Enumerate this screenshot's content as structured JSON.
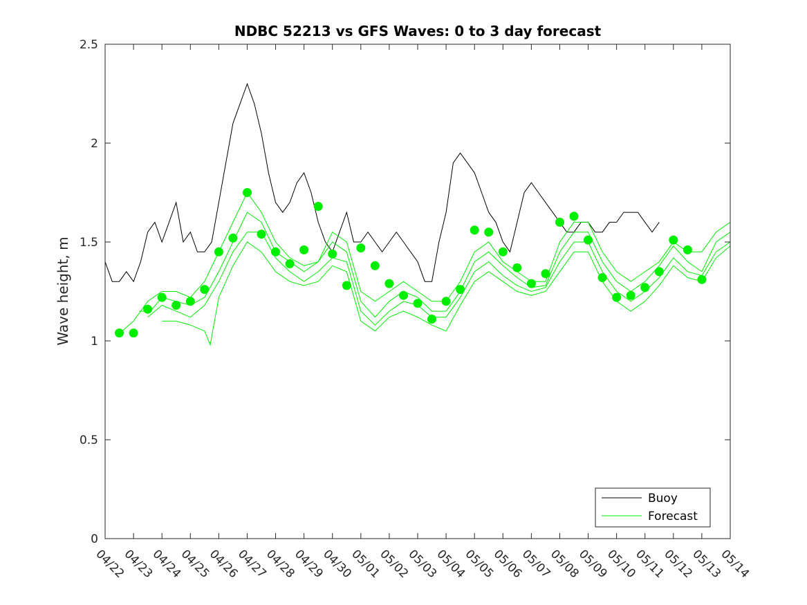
{
  "chart_data": {
    "type": "line",
    "title": "NDBC 52213 vs GFS Waves: 0 to 3 day forecast",
    "xlabel": "",
    "ylabel": "Wave height, m",
    "ylim": [
      0,
      2.5
    ],
    "yticks": [
      "0",
      "0.5",
      "1",
      "1.5",
      "2",
      "2.5"
    ],
    "xlim_days": [
      0,
      22
    ],
    "xticks": [
      "04/22",
      "04/23",
      "04/24",
      "04/25",
      "04/26",
      "04/27",
      "04/28",
      "04/29",
      "04/30",
      "05/01",
      "05/02",
      "05/03",
      "05/04",
      "05/05",
      "05/06",
      "05/07",
      "05/08",
      "05/09",
      "05/10",
      "05/11",
      "05/12",
      "05/13",
      "05/14"
    ],
    "grid": false,
    "legend": {
      "position": "bottom-right",
      "entries": [
        "Buoy",
        "Forecast"
      ]
    },
    "colors": {
      "buoy": "#000000",
      "forecast": "#00ee00"
    },
    "series": [
      {
        "name": "Buoy",
        "style": "line",
        "points": [
          [
            0,
            1.4
          ],
          [
            0.25,
            1.3
          ],
          [
            0.5,
            1.3
          ],
          [
            0.75,
            1.35
          ],
          [
            1,
            1.3
          ],
          [
            1.25,
            1.4
          ],
          [
            1.5,
            1.55
          ],
          [
            1.75,
            1.6
          ],
          [
            2,
            1.5
          ],
          [
            2.25,
            1.6
          ],
          [
            2.5,
            1.7
          ],
          [
            2.75,
            1.5
          ],
          [
            3,
            1.55
          ],
          [
            3.25,
            1.45
          ],
          [
            3.5,
            1.45
          ],
          [
            3.75,
            1.5
          ],
          [
            4,
            1.7
          ],
          [
            4.25,
            1.9
          ],
          [
            4.5,
            2.1
          ],
          [
            4.75,
            2.2
          ],
          [
            5,
            2.3
          ],
          [
            5.25,
            2.2
          ],
          [
            5.5,
            2.05
          ],
          [
            5.75,
            1.85
          ],
          [
            6,
            1.7
          ],
          [
            6.25,
            1.65
          ],
          [
            6.5,
            1.7
          ],
          [
            6.75,
            1.8
          ],
          [
            7,
            1.85
          ],
          [
            7.25,
            1.75
          ],
          [
            7.5,
            1.6
          ],
          [
            7.75,
            1.5
          ],
          [
            8,
            1.45
          ],
          [
            8.25,
            1.55
          ],
          [
            8.5,
            1.65
          ],
          [
            8.75,
            1.5
          ],
          [
            9,
            1.5
          ],
          [
            9.25,
            1.55
          ],
          [
            9.5,
            1.5
          ],
          [
            9.75,
            1.45
          ],
          [
            10,
            1.5
          ],
          [
            10.25,
            1.55
          ],
          [
            10.5,
            1.5
          ],
          [
            10.75,
            1.45
          ],
          [
            11,
            1.4
          ],
          [
            11.25,
            1.3
          ],
          [
            11.5,
            1.3
          ],
          [
            11.75,
            1.5
          ],
          [
            12,
            1.65
          ],
          [
            12.25,
            1.9
          ],
          [
            12.5,
            1.95
          ],
          [
            12.75,
            1.9
          ],
          [
            13,
            1.85
          ],
          [
            13.25,
            1.75
          ],
          [
            13.5,
            1.65
          ],
          [
            13.75,
            1.6
          ],
          [
            14,
            1.5
          ],
          [
            14.25,
            1.45
          ],
          [
            14.5,
            1.6
          ],
          [
            14.75,
            1.75
          ],
          [
            15,
            1.8
          ],
          [
            15.25,
            1.75
          ],
          [
            15.5,
            1.7
          ],
          [
            15.75,
            1.65
          ],
          [
            16,
            1.6
          ],
          [
            16.25,
            1.55
          ],
          [
            16.5,
            1.55
          ],
          [
            16.75,
            1.6
          ],
          [
            17,
            1.6
          ],
          [
            17.25,
            1.55
          ],
          [
            17.5,
            1.55
          ],
          [
            17.75,
            1.6
          ],
          [
            18,
            1.6
          ],
          [
            18.25,
            1.65
          ],
          [
            18.5,
            1.65
          ],
          [
            18.75,
            1.65
          ],
          [
            19,
            1.6
          ],
          [
            19.25,
            1.55
          ],
          [
            19.5,
            1.6
          ]
        ]
      },
      {
        "name": "Forecast",
        "style": "line-thin",
        "runs": [
          [
            [
              0.6,
              1.05
            ],
            [
              1,
              1.1
            ],
            [
              1.5,
              1.2
            ],
            [
              2,
              1.25
            ],
            [
              2.5,
              1.25
            ],
            [
              3,
              1.22
            ],
            [
              3.5,
              1.3
            ],
            [
              4,
              1.45
            ],
            [
              4.5,
              1.6
            ],
            [
              5,
              1.75
            ],
            [
              5.5,
              1.65
            ],
            [
              6,
              1.5
            ],
            [
              6.5,
              1.42
            ],
            [
              7,
              1.38
            ],
            [
              7.5,
              1.4
            ],
            [
              8,
              1.55
            ],
            [
              8.5,
              1.5
            ],
            [
              9,
              1.25
            ],
            [
              9.5,
              1.2
            ],
            [
              10,
              1.25
            ],
            [
              10.5,
              1.3
            ],
            [
              11,
              1.25
            ],
            [
              11.5,
              1.2
            ],
            [
              12,
              1.2
            ],
            [
              12.5,
              1.3
            ],
            [
              13,
              1.45
            ],
            [
              13.5,
              1.5
            ],
            [
              14,
              1.4
            ],
            [
              14.5,
              1.35
            ],
            [
              15,
              1.3
            ],
            [
              15.5,
              1.3
            ],
            [
              16,
              1.5
            ],
            [
              16.5,
              1.6
            ],
            [
              17,
              1.6
            ],
            [
              17.5,
              1.45
            ],
            [
              18,
              1.35
            ],
            [
              18.5,
              1.3
            ],
            [
              19,
              1.35
            ],
            [
              19.5,
              1.4
            ],
            [
              20,
              1.5
            ],
            [
              20.5,
              1.45
            ],
            [
              21,
              1.45
            ],
            [
              21.5,
              1.55
            ],
            [
              22,
              1.6
            ]
          ],
          [
            [
              1.2,
              1.15
            ],
            [
              1.6,
              1.15
            ],
            [
              2,
              1.22
            ],
            [
              2.5,
              1.2
            ],
            [
              3,
              1.18
            ],
            [
              3.5,
              1.22
            ],
            [
              4,
              1.35
            ],
            [
              4.5,
              1.5
            ],
            [
              5,
              1.65
            ],
            [
              5.5,
              1.6
            ],
            [
              6,
              1.45
            ],
            [
              6.5,
              1.4
            ],
            [
              7,
              1.35
            ],
            [
              7.5,
              1.4
            ],
            [
              8,
              1.5
            ],
            [
              8.5,
              1.45
            ],
            [
              9,
              1.2
            ],
            [
              9.5,
              1.12
            ],
            [
              10,
              1.2
            ],
            [
              10.5,
              1.25
            ],
            [
              11,
              1.22
            ],
            [
              11.5,
              1.15
            ],
            [
              12,
              1.15
            ],
            [
              12.5,
              1.25
            ],
            [
              13,
              1.4
            ],
            [
              13.5,
              1.45
            ],
            [
              14,
              1.38
            ],
            [
              14.5,
              1.32
            ],
            [
              15,
              1.27
            ],
            [
              15.5,
              1.28
            ],
            [
              16,
              1.45
            ],
            [
              16.5,
              1.55
            ],
            [
              17,
              1.55
            ],
            [
              17.5,
              1.4
            ],
            [
              18,
              1.3
            ],
            [
              18.5,
              1.25
            ],
            [
              19,
              1.3
            ],
            [
              19.5,
              1.38
            ],
            [
              20,
              1.48
            ],
            [
              20.5,
              1.4
            ],
            [
              21,
              1.35
            ],
            [
              21.5,
              1.5
            ],
            [
              22,
              1.55
            ]
          ],
          [
            [
              1.5,
              1.12
            ],
            [
              2,
              1.18
            ],
            [
              2.5,
              1.15
            ],
            [
              3,
              1.12
            ],
            [
              3.5,
              1.18
            ],
            [
              4,
              1.3
            ],
            [
              4.5,
              1.45
            ],
            [
              5,
              1.55
            ],
            [
              5.5,
              1.55
            ],
            [
              6,
              1.42
            ],
            [
              6.5,
              1.35
            ],
            [
              7,
              1.3
            ],
            [
              7.5,
              1.35
            ],
            [
              8,
              1.42
            ],
            [
              8.5,
              1.4
            ],
            [
              9,
              1.15
            ],
            [
              9.5,
              1.08
            ],
            [
              10,
              1.15
            ],
            [
              10.5,
              1.2
            ],
            [
              11,
              1.18
            ],
            [
              11.5,
              1.12
            ],
            [
              12,
              1.12
            ],
            [
              12.5,
              1.22
            ],
            [
              13,
              1.35
            ],
            [
              13.5,
              1.4
            ],
            [
              14,
              1.33
            ],
            [
              14.5,
              1.28
            ],
            [
              15,
              1.25
            ],
            [
              15.5,
              1.27
            ],
            [
              16,
              1.4
            ],
            [
              16.5,
              1.5
            ],
            [
              17,
              1.5
            ],
            [
              17.5,
              1.35
            ],
            [
              18,
              1.25
            ],
            [
              18.5,
              1.2
            ],
            [
              19,
              1.25
            ],
            [
              19.5,
              1.32
            ],
            [
              20,
              1.42
            ],
            [
              20.5,
              1.35
            ],
            [
              21,
              1.33
            ],
            [
              21.5,
              1.45
            ],
            [
              22,
              1.5
            ]
          ],
          [
            [
              2,
              1.1
            ],
            [
              2.5,
              1.1
            ],
            [
              3,
              1.08
            ],
            [
              3.5,
              1.05
            ],
            [
              3.7,
              0.98
            ],
            [
              4,
              1.22
            ],
            [
              4.5,
              1.38
            ],
            [
              5,
              1.5
            ],
            [
              5.5,
              1.45
            ],
            [
              6,
              1.35
            ],
            [
              6.5,
              1.3
            ],
            [
              7,
              1.28
            ],
            [
              7.5,
              1.3
            ],
            [
              8,
              1.38
            ],
            [
              8.5,
              1.35
            ],
            [
              9,
              1.1
            ],
            [
              9.5,
              1.05
            ],
            [
              10,
              1.12
            ],
            [
              10.5,
              1.15
            ],
            [
              11,
              1.12
            ],
            [
              11.5,
              1.08
            ],
            [
              12,
              1.05
            ],
            [
              12.5,
              1.18
            ],
            [
              13,
              1.3
            ],
            [
              13.5,
              1.35
            ],
            [
              14,
              1.3
            ],
            [
              14.5,
              1.25
            ],
            [
              15,
              1.23
            ],
            [
              15.5,
              1.25
            ],
            [
              16,
              1.35
            ],
            [
              16.5,
              1.45
            ],
            [
              17,
              1.45
            ],
            [
              17.5,
              1.3
            ],
            [
              18,
              1.2
            ],
            [
              18.5,
              1.15
            ],
            [
              19,
              1.2
            ],
            [
              19.5,
              1.28
            ],
            [
              20,
              1.38
            ],
            [
              20.5,
              1.32
            ],
            [
              21,
              1.3
            ],
            [
              21.5,
              1.42
            ],
            [
              22,
              1.48
            ]
          ]
        ],
        "analysis_points": [
          [
            0.5,
            1.04
          ],
          [
            1,
            1.04
          ],
          [
            1.5,
            1.16
          ],
          [
            2,
            1.22
          ],
          [
            2.5,
            1.18
          ],
          [
            3,
            1.2
          ],
          [
            3.5,
            1.26
          ],
          [
            4,
            1.45
          ],
          [
            4.5,
            1.52
          ],
          [
            5,
            1.75
          ],
          [
            5.5,
            1.54
          ],
          [
            6,
            1.45
          ],
          [
            6.5,
            1.39
          ],
          [
            7,
            1.46
          ],
          [
            7.5,
            1.68
          ],
          [
            8,
            1.44
          ],
          [
            8.5,
            1.28
          ],
          [
            9,
            1.47
          ],
          [
            9.5,
            1.38
          ],
          [
            10,
            1.29
          ],
          [
            10.5,
            1.23
          ],
          [
            11,
            1.19
          ],
          [
            11.5,
            1.11
          ],
          [
            12,
            1.2
          ],
          [
            12.5,
            1.26
          ],
          [
            13,
            1.56
          ],
          [
            13.5,
            1.55
          ],
          [
            14,
            1.45
          ],
          [
            14.5,
            1.37
          ],
          [
            15,
            1.29
          ],
          [
            15.5,
            1.34
          ],
          [
            16,
            1.6
          ],
          [
            16.5,
            1.63
          ],
          [
            17,
            1.51
          ],
          [
            17.5,
            1.32
          ],
          [
            18,
            1.22
          ],
          [
            18.5,
            1.23
          ],
          [
            19,
            1.27
          ],
          [
            19.5,
            1.35
          ],
          [
            20,
            1.51
          ],
          [
            20.5,
            1.46
          ],
          [
            21,
            1.31
          ]
        ]
      }
    ]
  }
}
